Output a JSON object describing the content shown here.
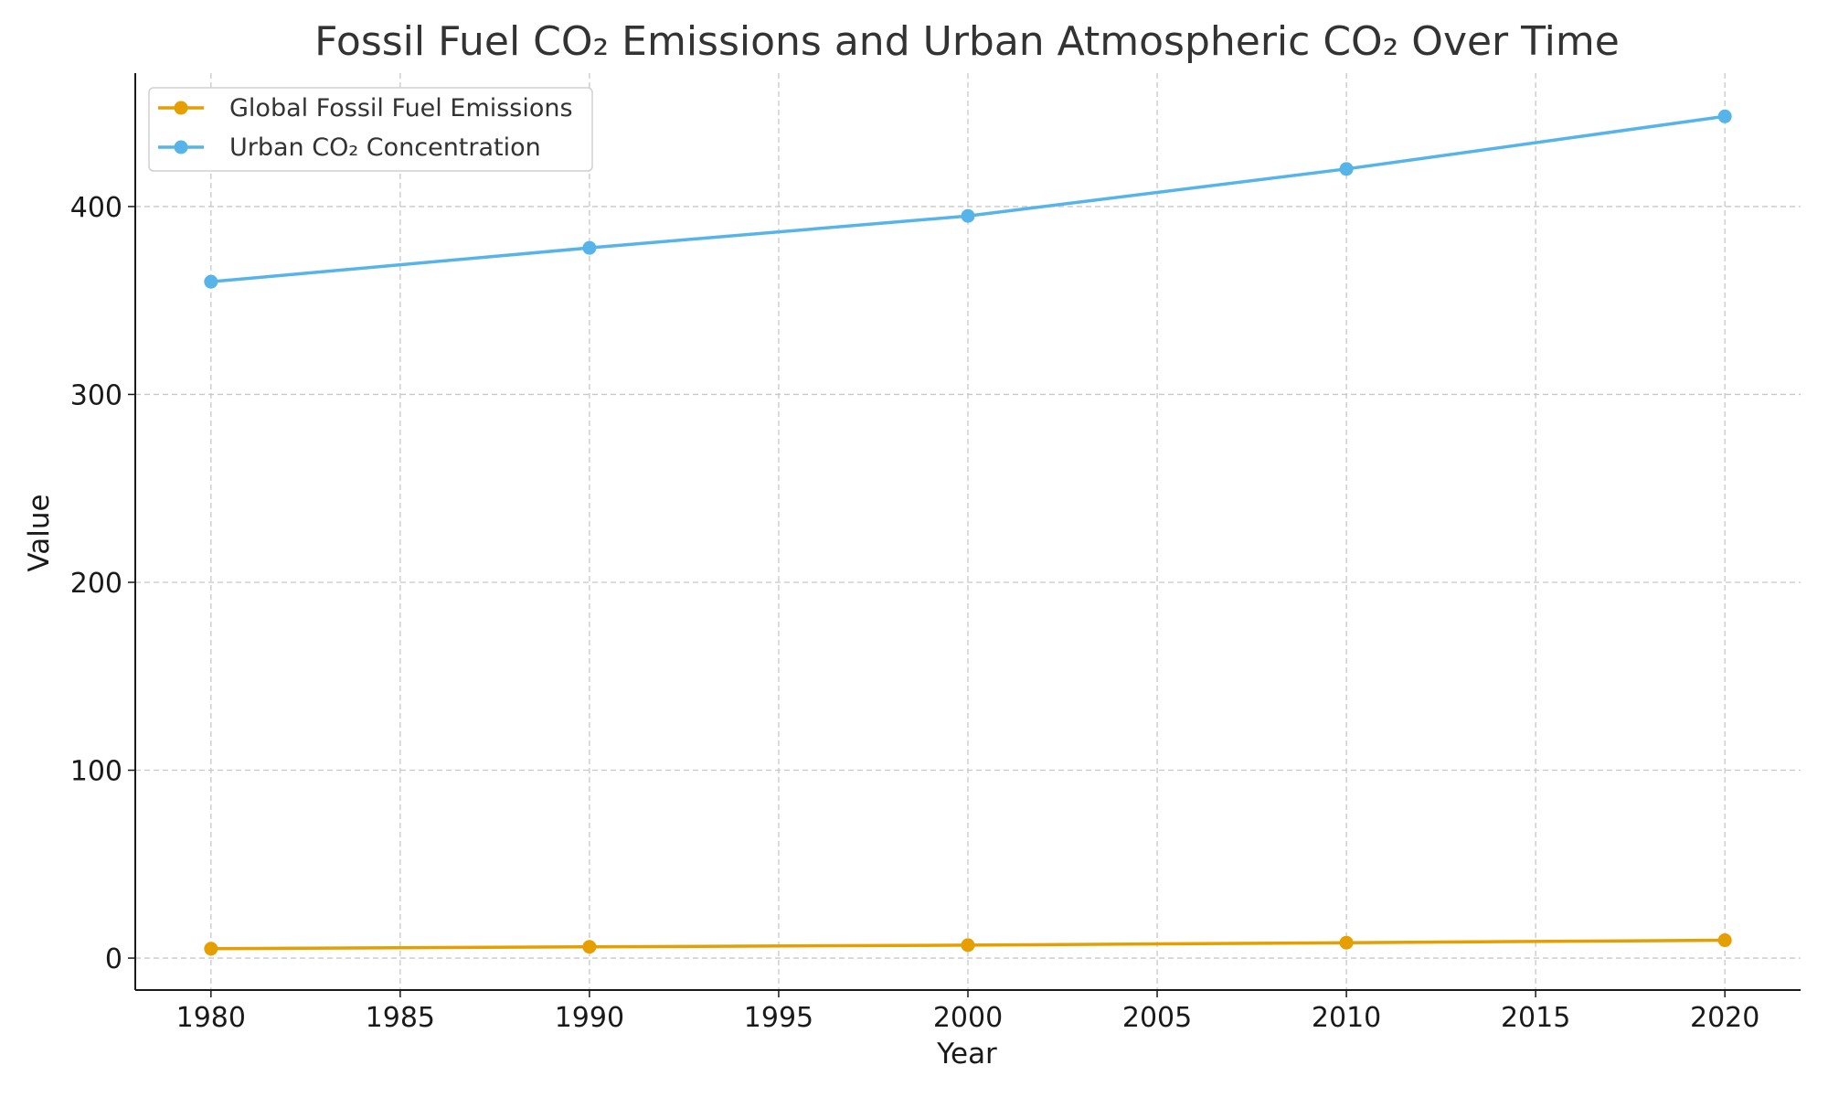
{
  "chart_data": {
    "type": "line",
    "title": "Fossil Fuel CO₂ Emissions and Urban Atmospheric CO₂ Over Time",
    "xlabel": "Year",
    "ylabel": "Value",
    "x": [
      1980,
      1990,
      2000,
      2010,
      2020
    ],
    "x_ticks": [
      "1980",
      "1985",
      "1990",
      "1995",
      "2000",
      "2005",
      "2010",
      "2015",
      "2020"
    ],
    "y_ticks": [
      "0",
      "100",
      "200",
      "300",
      "400"
    ],
    "xlim": [
      1978,
      2022
    ],
    "ylim": [
      -17,
      471
    ],
    "grid": true,
    "legend_position": "top-left",
    "series": [
      {
        "name": "Global Fossil Fuel Emissions",
        "color": "#E69F00",
        "marker": "circle",
        "values": [
          5.0,
          6.0,
          6.9,
          8.2,
          9.5
        ]
      },
      {
        "name": "Urban CO₂ Concentration",
        "color": "#56B4E9",
        "marker": "circle",
        "values": [
          360,
          378,
          395,
          420,
          448
        ]
      }
    ]
  }
}
